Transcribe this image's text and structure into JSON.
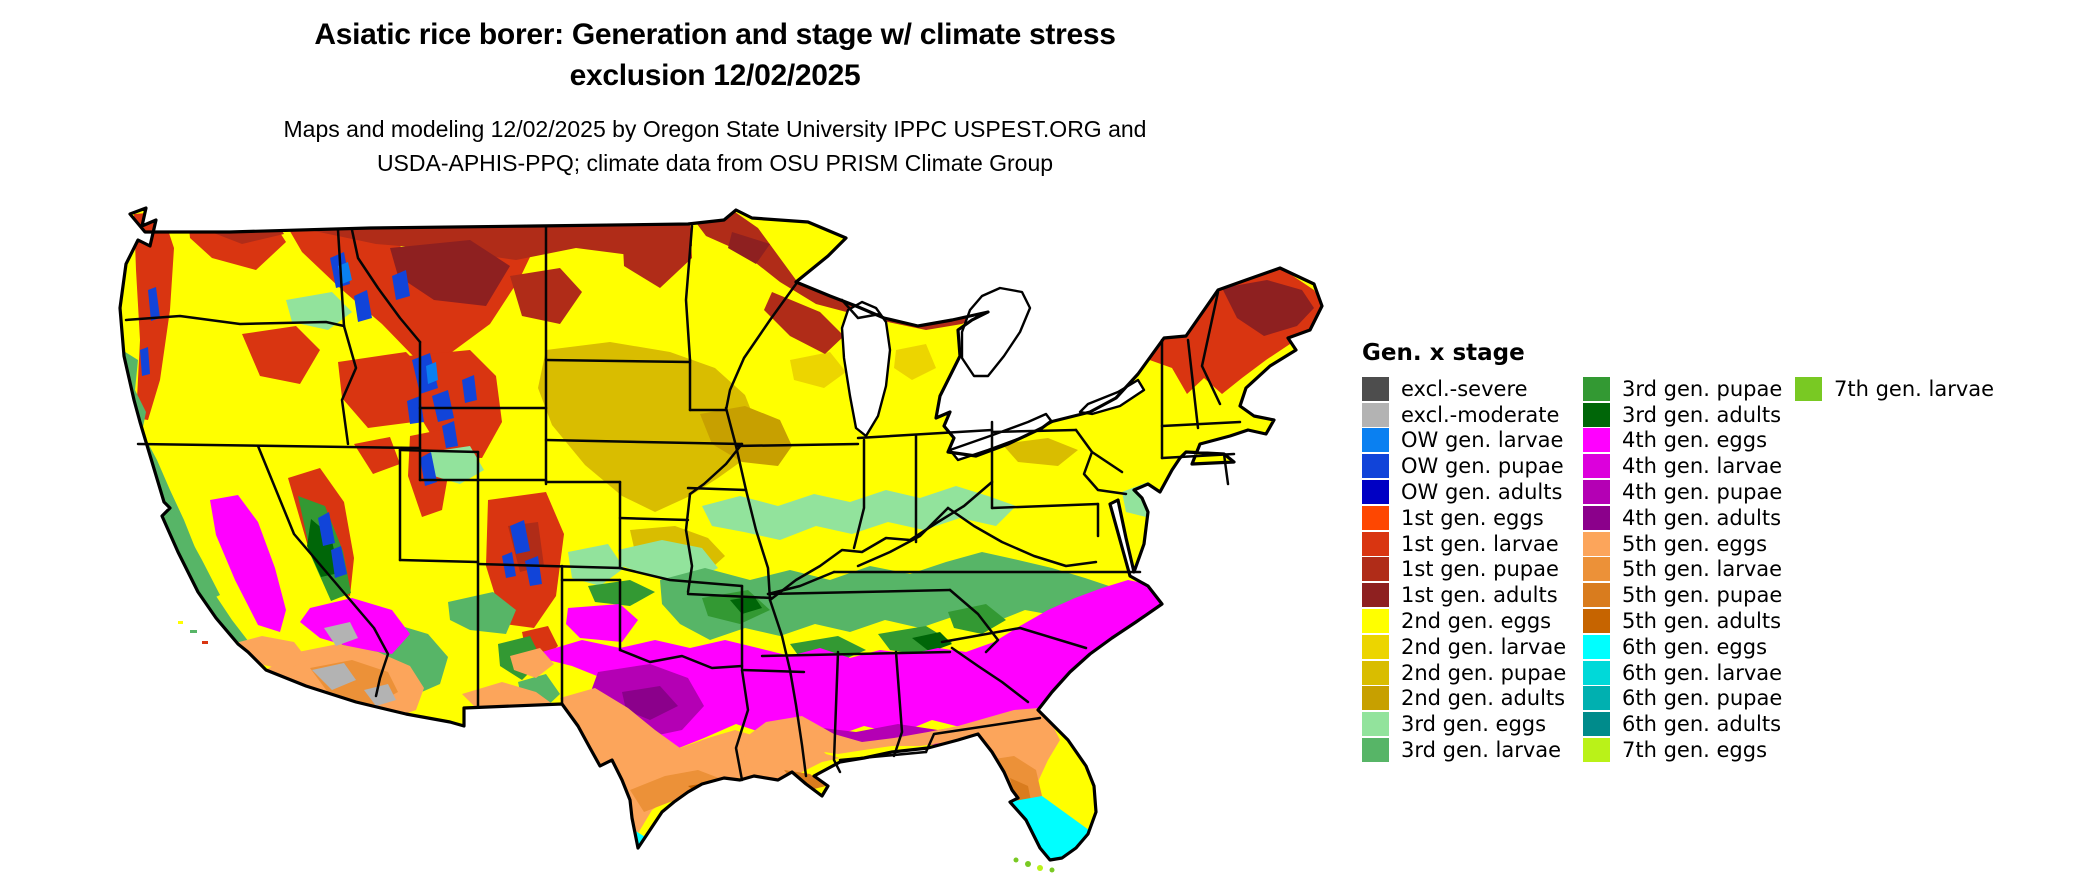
{
  "header": {
    "title_line1": "Asiatic rice borer: Generation and stage w/ climate stress",
    "title_line2": "exclusion 12/02/2025",
    "subtitle_line1": "Maps and modeling 12/02/2025 by Oregon State University IPPC USPEST.ORG and",
    "subtitle_line2": "USDA-APHIS-PPQ; climate data from OSU PRISM Climate Group"
  },
  "palette": {
    "excl_severe": "#4d4d4d",
    "excl_moderate": "#b3b3b3",
    "ow_larvae": "#0a80f1",
    "ow_pupae": "#1144d9",
    "ow_adults": "#0000c4",
    "g1_eggs": "#fe4701",
    "g1_larvae": "#d93511",
    "g1_pupae": "#b02c18",
    "g1_adults": "#8e2020",
    "g2_eggs": "#ffff00",
    "g2_larvae": "#ecd500",
    "g2_pupae": "#d9bd00",
    "g2_adults": "#c7a000",
    "g3_eggs": "#92e39c",
    "g3_larvae": "#57b567",
    "g3_pupae": "#339933",
    "g3_adults": "#006608",
    "g4_eggs": "#ff00ff",
    "g4_larvae": "#dc00dc",
    "g4_pupae": "#b400b4",
    "g4_adults": "#8b008b",
    "g5_eggs": "#fca55b",
    "g5_larvae": "#ec9138",
    "g5_pupae": "#d97c1e",
    "g5_adults": "#c66400",
    "g6_eggs": "#00ffff",
    "g6_larvae": "#00d9d9",
    "g6_pupae": "#00b0b0",
    "g6_adults": "#008b8b",
    "g7_eggs": "#baf218",
    "g7_larvae": "#79c923"
  },
  "legend": {
    "title": "Gen. x stage",
    "columns": [
      [
        {
          "label": "excl.-severe",
          "color_key": "excl_severe"
        },
        {
          "label": "excl.-moderate",
          "color_key": "excl_moderate"
        },
        {
          "label": "OW gen. larvae",
          "color_key": "ow_larvae"
        },
        {
          "label": "OW gen. pupae",
          "color_key": "ow_pupae"
        },
        {
          "label": "OW gen. adults",
          "color_key": "ow_adults"
        },
        {
          "label": "1st gen. eggs",
          "color_key": "g1_eggs"
        },
        {
          "label": "1st gen. larvae",
          "color_key": "g1_larvae"
        },
        {
          "label": "1st gen. pupae",
          "color_key": "g1_pupae"
        },
        {
          "label": "1st gen. adults",
          "color_key": "g1_adults"
        },
        {
          "label": "2nd gen. eggs",
          "color_key": "g2_eggs"
        },
        {
          "label": "2nd gen. larvae",
          "color_key": "g2_larvae"
        },
        {
          "label": "2nd gen. pupae",
          "color_key": "g2_pupae"
        },
        {
          "label": "2nd gen. adults",
          "color_key": "g2_adults"
        },
        {
          "label": "3rd gen. eggs",
          "color_key": "g3_eggs"
        },
        {
          "label": "3rd gen. larvae",
          "color_key": "g3_larvae"
        }
      ],
      [
        {
          "label": "3rd gen. pupae",
          "color_key": "g3_pupae"
        },
        {
          "label": "3rd gen. adults",
          "color_key": "g3_adults"
        },
        {
          "label": "4th gen. eggs",
          "color_key": "g4_eggs"
        },
        {
          "label": "4th gen. larvae",
          "color_key": "g4_larvae"
        },
        {
          "label": "4th gen. pupae",
          "color_key": "g4_pupae"
        },
        {
          "label": "4th gen. adults",
          "color_key": "g4_adults"
        },
        {
          "label": "5th gen. eggs",
          "color_key": "g5_eggs"
        },
        {
          "label": "5th gen. larvae",
          "color_key": "g5_larvae"
        },
        {
          "label": "5th gen. pupae",
          "color_key": "g5_pupae"
        },
        {
          "label": "5th gen. adults",
          "color_key": "g5_adults"
        },
        {
          "label": "6th gen. eggs",
          "color_key": "g6_eggs"
        },
        {
          "label": "6th gen. larvae",
          "color_key": "g6_larvae"
        },
        {
          "label": "6th gen. pupae",
          "color_key": "g6_pupae"
        },
        {
          "label": "6th gen. adults",
          "color_key": "g6_adults"
        },
        {
          "label": "7th gen. eggs",
          "color_key": "g7_eggs"
        }
      ],
      [
        {
          "label": "7th gen. larvae",
          "color_key": "g7_larvae"
        }
      ]
    ]
  },
  "map": {
    "region": "Contiguous United States with state boundaries",
    "kind": "raster pest generation-and-stage map",
    "zones_north_to_south": [
      "1st gen. larvae/pupae/adults - northern border, Cascades and Rockies, northern Minnesota/Wisconsin/Michigan, northern New England",
      "OW gen. larvae/pupae - high mountain pockets (blue speckles) in Cascades, Idaho, Yellowstone, Colorado Rockies, Sierra Nevada",
      "2nd gen. eggs-adults - Pacific Northwest interior, Great Basin, northern plains, Great Lakes, Northeast",
      "3rd gen. eggs-adults - central band from Kansas/Missouri through Ohio Valley to Virginia; California coast; NM/AZ highlands",
      "4th gen. eggs-adults - Oklahoma/Arkansas and the Deep South to coastal Carolinas; north Texas; California Central Valley; Mojave",
      "5th gen. eggs-adults - Gulf Coast, central/coastal Texas, Louisiana, northern Florida, desert Southwest",
      "6th gen. eggs - southern tip of Texas and south Florida",
      "7th gen. eggs/larvae - Florida Keys",
      "excl.-moderate - scattered gray patches in Arizona deserts"
    ]
  }
}
